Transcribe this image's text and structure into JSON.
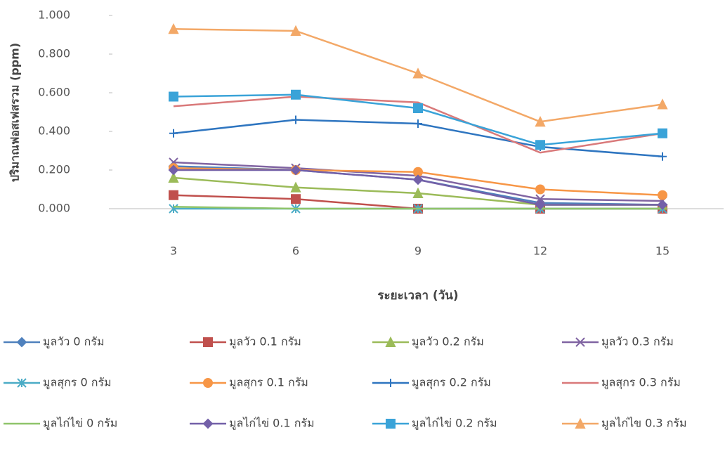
{
  "chart_data": {
    "type": "line",
    "y_label": "ปริมาณฟอสเฟสรวม (ppm)",
    "x_label": "ระยะเวลา (วัน)",
    "x": [
      3,
      6,
      9,
      12,
      15
    ],
    "xlim": [
      1.5,
      16.5
    ],
    "xticks": [
      3,
      6,
      9,
      12,
      15
    ],
    "ylim": [
      0,
      1
    ],
    "yticks": [
      {
        "value": 0,
        "label": "0.000"
      },
      {
        "value": 0.2,
        "label": "0.200"
      },
      {
        "value": 0.4,
        "label": "0.400"
      },
      {
        "value": 0.6,
        "label": "0.600"
      },
      {
        "value": 0.8,
        "label": "0.800"
      },
      {
        "value": 1,
        "label": "1.000"
      }
    ],
    "grid": false,
    "legend": "bottom",
    "series": [
      {
        "name": "มูลวัว 0 กรัม",
        "color": "#4f81bd",
        "marker": "diamond",
        "values": [
          0.22,
          0.2,
          0.15,
          0.03,
          0.02
        ]
      },
      {
        "name": "มูลวัว 0.1 กรัม",
        "color": "#c0504d",
        "marker": "square",
        "values": [
          0.07,
          0.05,
          0.0,
          0.0,
          0.0
        ]
      },
      {
        "name": "มูลวัว 0.2 กรัม",
        "color": "#9bbb59",
        "marker": "triangle",
        "values": [
          0.16,
          0.11,
          0.08,
          0.02,
          0.02
        ]
      },
      {
        "name": "มูลวัว 0.3 กรัม",
        "color": "#8064a2",
        "marker": "x",
        "values": [
          0.24,
          0.21,
          0.17,
          0.05,
          0.04
        ]
      },
      {
        "name": "มูลสุกร 0 กรัม",
        "color": "#4bacc6",
        "marker": "star",
        "values": [
          0.0,
          0.0,
          0.0,
          0.0,
          0.0
        ]
      },
      {
        "name": "มูลสุกร 0.1 กรัม",
        "color": "#f79646",
        "marker": "circle",
        "values": [
          0.21,
          0.2,
          0.19,
          0.1,
          0.07
        ]
      },
      {
        "name": "มูลสุกร  0.2 กรัม",
        "color": "#2e75c0",
        "marker": "plus",
        "values": [
          0.39,
          0.46,
          0.44,
          0.32,
          0.27
        ]
      },
      {
        "name": "มูลสุกร 0.3 กรัม",
        "color": "#d9797a",
        "marker": "none",
        "values": [
          0.53,
          0.58,
          0.55,
          0.29,
          0.39
        ]
      },
      {
        "name": "มูลไก่ไข่ 0 กรัม",
        "color": "#8fc46a",
        "marker": "none",
        "values": [
          0.01,
          0.0,
          0.0,
          0.0,
          0.0
        ]
      },
      {
        "name": "มูลไก่ไข่ 0.1 กรัม",
        "color": "#7360a8",
        "marker": "diamond",
        "values": [
          0.2,
          0.2,
          0.15,
          0.02,
          0.02
        ]
      },
      {
        "name": "มูลไก่ไข่  0.2 กรัม",
        "color": "#3aa3d8",
        "marker": "square",
        "values": [
          0.58,
          0.59,
          0.52,
          0.33,
          0.39
        ]
      },
      {
        "name": "มูลไก่ไข  0.3 กรัม",
        "color": "#f3a867",
        "marker": "triangle",
        "values": [
          0.93,
          0.92,
          0.7,
          0.45,
          0.54
        ]
      }
    ]
  }
}
